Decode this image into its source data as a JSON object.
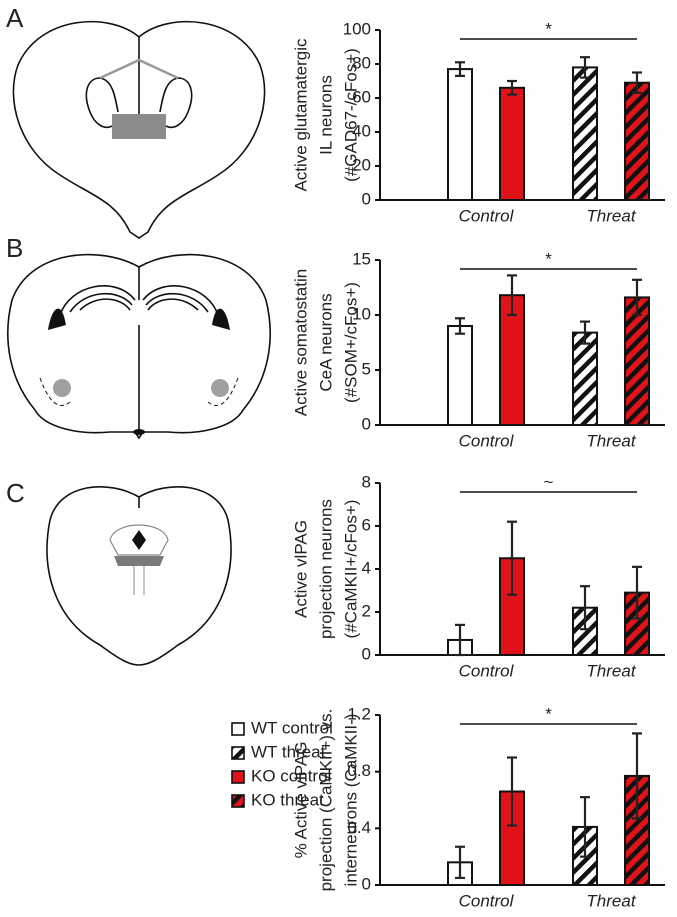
{
  "panels": [
    "A",
    "B",
    "C"
  ],
  "chart_data": [
    {
      "type": "bar",
      "ylabel": [
        "Active glutamatergic",
        "IL neurons",
        "(#GAD67-/cFos+)"
      ],
      "categories": [
        "Control",
        "Threat"
      ],
      "ylim": [
        0,
        100
      ],
      "yticks": [
        0,
        20,
        40,
        60,
        80,
        100
      ],
      "annotation": "*",
      "series": [
        {
          "name": "WT control",
          "color": "#ffffff",
          "hatch": false,
          "values": [
            77,
            null
          ],
          "errors": [
            4,
            null
          ]
        },
        {
          "name": "WT threat",
          "color": "#ffffff",
          "hatch": true,
          "values": [
            null,
            78
          ],
          "errors": [
            null,
            6
          ]
        },
        {
          "name": "KO control",
          "color": "#e0131b",
          "hatch": false,
          "values": [
            66,
            null
          ],
          "errors": [
            4,
            null
          ]
        },
        {
          "name": "KO threat",
          "color": "#e0131b",
          "hatch": true,
          "values": [
            null,
            69
          ],
          "errors": [
            null,
            6
          ]
        }
      ]
    },
    {
      "type": "bar",
      "ylabel": [
        "Active somatostatin",
        "CeA neurons",
        "(#SOM+/cFos+)"
      ],
      "categories": [
        "Control",
        "Threat"
      ],
      "ylim": [
        0,
        15
      ],
      "yticks": [
        0,
        5,
        10,
        15
      ],
      "annotation": "*",
      "series": [
        {
          "name": "WT control",
          "color": "#ffffff",
          "hatch": false,
          "values": [
            9.0,
            null
          ],
          "errors": [
            0.7,
            null
          ]
        },
        {
          "name": "WT threat",
          "color": "#ffffff",
          "hatch": true,
          "values": [
            null,
            8.4
          ],
          "errors": [
            null,
            1.0
          ]
        },
        {
          "name": "KO control",
          "color": "#e0131b",
          "hatch": false,
          "values": [
            11.8,
            null
          ],
          "errors": [
            1.8,
            null
          ]
        },
        {
          "name": "KO threat",
          "color": "#e0131b",
          "hatch": true,
          "values": [
            null,
            11.6
          ],
          "errors": [
            null,
            1.6
          ]
        }
      ]
    },
    {
      "type": "bar",
      "ylabel": [
        "Active vlPAG",
        "projection neurons",
        "(#CaMKII+/cFos+)"
      ],
      "categories": [
        "Control",
        "Threat"
      ],
      "ylim": [
        0,
        8
      ],
      "yticks": [
        0,
        2,
        4,
        6,
        8
      ],
      "annotation": "~",
      "series": [
        {
          "name": "WT control",
          "color": "#ffffff",
          "hatch": false,
          "values": [
            0.7,
            null
          ],
          "errors": [
            0.7,
            null
          ]
        },
        {
          "name": "WT threat",
          "color": "#ffffff",
          "hatch": true,
          "values": [
            null,
            2.2
          ],
          "errors": [
            null,
            1.0
          ]
        },
        {
          "name": "KO control",
          "color": "#e0131b",
          "hatch": false,
          "values": [
            4.5,
            null
          ],
          "errors": [
            1.7,
            null
          ]
        },
        {
          "name": "KO threat",
          "color": "#e0131b",
          "hatch": true,
          "values": [
            null,
            2.9
          ],
          "errors": [
            null,
            1.2
          ]
        }
      ]
    },
    {
      "type": "bar",
      "ylabel": [
        "% Active vlPAG",
        "projection (CaMKII+) vs.",
        "interneurons (CaMKII-)"
      ],
      "categories": [
        "Control",
        "Threat"
      ],
      "ylim": [
        0,
        1.2
      ],
      "yticks": [
        0,
        0.4,
        0.8,
        1.2
      ],
      "annotation": "*",
      "series": [
        {
          "name": "WT control",
          "color": "#ffffff",
          "hatch": false,
          "values": [
            0.16,
            null
          ],
          "errors": [
            0.11,
            null
          ]
        },
        {
          "name": "WT threat",
          "color": "#ffffff",
          "hatch": true,
          "values": [
            null,
            0.41
          ],
          "errors": [
            null,
            0.21
          ]
        },
        {
          "name": "KO control",
          "color": "#e0131b",
          "hatch": false,
          "values": [
            0.66,
            null
          ],
          "errors": [
            0.24,
            null
          ]
        },
        {
          "name": "KO threat",
          "color": "#e0131b",
          "hatch": true,
          "values": [
            null,
            0.77
          ],
          "errors": [
            null,
            0.3
          ]
        }
      ]
    }
  ]
}
